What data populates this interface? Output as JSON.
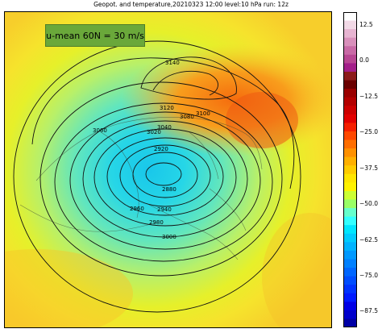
{
  "title": "Geopot. and temperature,20210323 12:00 level:10 hPa run: 12z",
  "annotation": "u-mean 60N = 30 m/s",
  "colorbar": {
    "labels": [
      "12.5",
      "0.0",
      "−12.5",
      "−25.0",
      "−37.5",
      "−50.0",
      "−62.5",
      "−75.0",
      "−87.5"
    ],
    "values": [
      12.5,
      0.0,
      -12.5,
      -25.0,
      -37.5,
      -50.0,
      -62.5,
      -75.0,
      -87.5
    ],
    "range": [
      -93,
      17
    ],
    "colors": [
      "#ffffff",
      "#f2d9e6",
      "#e7b4d1",
      "#d990bb",
      "#c96aa6",
      "#b84793",
      "#a31f8a",
      "#8c1b1b",
      "#6a0000",
      "#9a0000",
      "#b30000",
      "#cc0000",
      "#e20000",
      "#f51f00",
      "#ff4800",
      "#ff6e00",
      "#ff9100",
      "#ffb000",
      "#ffcc00",
      "#ffe600",
      "#fff200",
      "#ccff33",
      "#99ff66",
      "#66ffcc",
      "#33ffff",
      "#00e6ff",
      "#00ccff",
      "#00b3ff",
      "#0099ff",
      "#0080ff",
      "#0066ff",
      "#004dff",
      "#0033ff",
      "#001aff",
      "#0000e6",
      "#0000cc",
      "#0000a6"
    ]
  },
  "contour_labels": [
    "3140",
    "3120",
    "3100",
    "3080",
    "3060",
    "3040",
    "3020",
    "2920",
    "2880",
    "2940",
    "2960",
    "2980",
    "3000"
  ],
  "colors": {
    "background": "#ffffff",
    "annotation_box": "#6aa83a",
    "contour": "#111111"
  }
}
